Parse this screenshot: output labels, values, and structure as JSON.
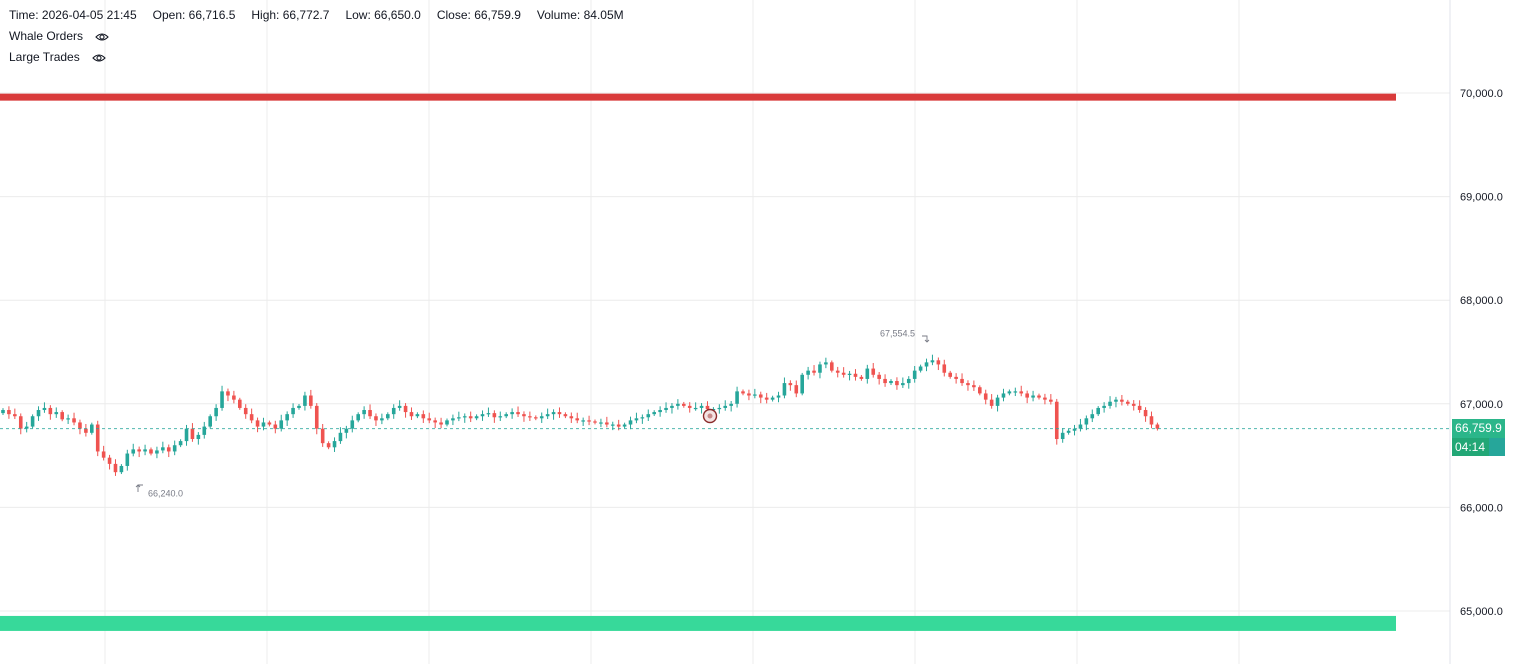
{
  "legend": {
    "time": "Time: 2026-04-05 21:45",
    "open": "Open: 66,716.5",
    "high": "High: 66,772.7",
    "low": "Low: 66,650.0",
    "close": "Close: 66,759.9",
    "volume": "Volume: 84.05M",
    "indicators": [
      {
        "label": "Whale Orders",
        "icon": "eye-icon"
      },
      {
        "label": "Large Trades",
        "icon": "eye-icon"
      }
    ]
  },
  "colors": {
    "up": "#26a69a",
    "down": "#ef5350",
    "resistance": "#d93b3b",
    "support": "#37d99a",
    "grid": "#ececec",
    "last_price_line": "#26a69a"
  },
  "price_scale": {
    "labels": [
      "70,000.0",
      "69,000.0",
      "68,000.0",
      "67,000.0",
      "66,000.0",
      "65,000.0"
    ]
  },
  "last_price": {
    "value": "66,759.9",
    "countdown": "04:14"
  },
  "chart_data": {
    "type": "candlestick",
    "ylim": [
      64400,
      70700
    ],
    "y_ticks": [
      70000,
      69000,
      68000,
      67000,
      66000,
      65000
    ],
    "levels": [
      {
        "kind": "resistance",
        "value": 69960
      },
      {
        "kind": "support",
        "value": 64880
      }
    ],
    "annotations": [
      {
        "label": "67,554.5",
        "value": 67554.5,
        "kind": "high"
      },
      {
        "label": "66,240.0",
        "value": 66240.0,
        "kind": "low"
      }
    ],
    "close_series": [
      66940,
      66900,
      66880,
      66760,
      66780,
      66880,
      66940,
      66960,
      66900,
      66920,
      66850,
      66860,
      66820,
      66760,
      66720,
      66800,
      66540,
      66480,
      66420,
      66340,
      66400,
      66520,
      66560,
      66540,
      66560,
      66520,
      66550,
      66580,
      66540,
      66600,
      66640,
      66760,
      66660,
      66700,
      66780,
      66880,
      66960,
      67120,
      67080,
      67040,
      66960,
      66900,
      66840,
      66780,
      66820,
      66800,
      66760,
      66840,
      66900,
      66960,
      66980,
      67080,
      66980,
      66760,
      66620,
      66580,
      66640,
      66720,
      66760,
      66840,
      66900,
      66940,
      66880,
      66840,
      66860,
      66900,
      66960,
      66980,
      66920,
      66880,
      66900,
      66860,
      66840,
      66820,
      66800,
      66840,
      66860,
      66870,
      66880,
      66860,
      66880,
      66900,
      66910,
      66870,
      66880,
      66900,
      66920,
      66900,
      66880,
      66870,
      66860,
      66880,
      66900,
      66920,
      66900,
      66880,
      66860,
      66840,
      66840,
      66830,
      66820,
      66820,
      66800,
      66800,
      66780,
      66800,
      66840,
      66860,
      66870,
      66900,
      66920,
      66940,
      66960,
      66980,
      67000,
      66980,
      66960,
      66960,
      66980,
      66950,
      66950,
      66960,
      66980,
      67000,
      67120,
      67100,
      67080,
      67090,
      67060,
      67040,
      67060,
      67080,
      67200,
      67180,
      67100,
      67280,
      67320,
      67300,
      67380,
      67400,
      67320,
      67300,
      67280,
      67290,
      67260,
      67240,
      67340,
      67280,
      67240,
      67200,
      67220,
      67180,
      67200,
      67240,
      67320,
      67360,
      67400,
      67420,
      67380,
      67300,
      67260,
      67240,
      67200,
      67180,
      67160,
      67100,
      67040,
      66980,
      67060,
      67100,
      67120,
      67120,
      67100,
      67060,
      67080,
      67060,
      67040,
      67020,
      66660,
      66720,
      66740,
      66760,
      66800,
      66860,
      66900,
      66960,
      66980,
      67020,
      67040,
      67020,
      67000,
      66980,
      66940,
      66880,
      66800,
      66760
    ]
  }
}
